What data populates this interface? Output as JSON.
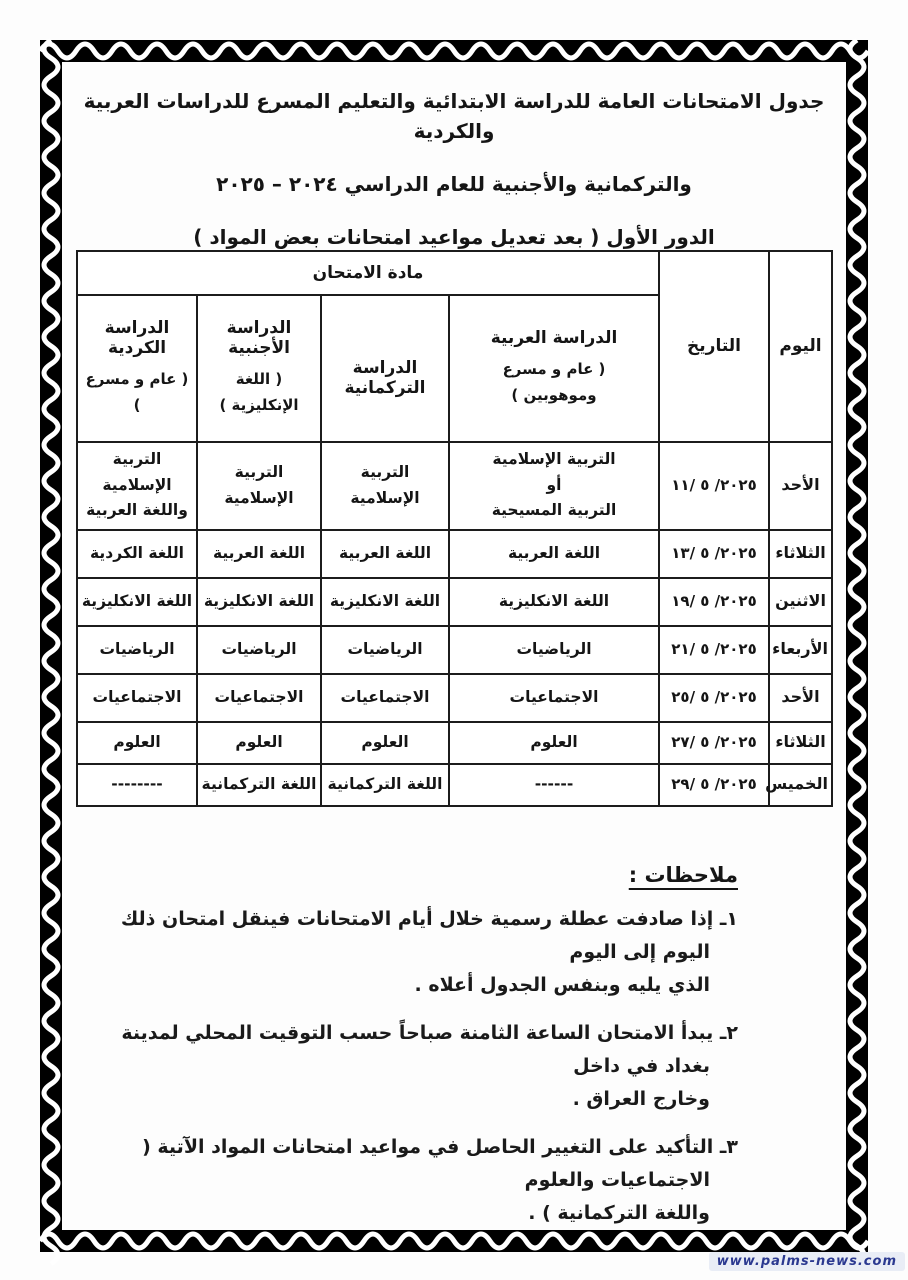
{
  "document": {
    "title_lines": [
      "جدول الامتحانات العامة للدراسة الابتدائية والتعليم المسرع للدراسات العربية والكردية",
      "والتركمانية والأجنبية للعام الدراسي ٢٠٢٤ – ٢٠٢٥",
      "الدور الأول ( بعد تعديل مواعيد امتحانات بعض المواد )"
    ],
    "notes_header": "ملاحظات :",
    "notes": [
      "١ـ إذا صادفت عطلة رسمية خلال أيام الامتحانات فينقل امتحان ذلك اليوم إلى اليوم\nالذي يليه وبنفس الجدول أعلاه .",
      "٢ـ يبدأ الامتحان الساعة الثامنة صباحاً حسب التوقيت المحلي لمدينة بغداد في داخل\nوخارج العراق .",
      "٣ـ التأكيد على التغيير الحاصل في مواعيد امتحانات المواد الآتية ( الاجتماعيات والعلوم\nواللغة التركمانية ) ."
    ],
    "watermark": "www.palms-news.com",
    "accent_colors": {
      "frame": "#000000",
      "watermark_text": "#2b3990",
      "watermark_bg": "#e9edf6"
    }
  },
  "table": {
    "header": {
      "subject": "مادة الامتحان",
      "date": "التاريخ",
      "day": "اليوم",
      "studies": [
        {
          "title": "الدراسة العربية",
          "subtitle": "( عام و مسرع\nوموهوبين )"
        },
        {
          "title": "الدراسة التركمانية",
          "subtitle": ""
        },
        {
          "title": "الدراسة الأجنبية",
          "subtitle": "( اللغة الإنكليزية )"
        },
        {
          "title": "الدراسة الكردية",
          "subtitle": "( عام و مسرع )"
        }
      ]
    },
    "rows": [
      {
        "day": "الأحد",
        "date": "٢٠٢٥/ ٥ /١١",
        "subjects": [
          "التربية الإسلامية\nأو\nالتربية المسيحية",
          "التربية الإسلامية",
          "التربية الإسلامية",
          "التربية الإسلامية\nواللغة العربية"
        ]
      },
      {
        "day": "الثلاثاء",
        "date": "٢٠٢٥/ ٥ /١٣",
        "subjects": [
          "اللغة العربية",
          "اللغة العربية",
          "اللغة العربية",
          "اللغة الكردية"
        ]
      },
      {
        "day": "الاثنين",
        "date": "٢٠٢٥/ ٥ /١٩",
        "subjects": [
          "اللغة الانكليزية",
          "اللغة الانكليزية",
          "اللغة الانكليزية",
          "اللغة الانكليزية"
        ]
      },
      {
        "day": "الأربعاء",
        "date": "٢٠٢٥/ ٥ /٢١",
        "subjects": [
          "الرياضيات",
          "الرياضيات",
          "الرياضيات",
          "الرياضيات"
        ]
      },
      {
        "day": "الأحد",
        "date": "٢٠٢٥/ ٥ /٢٥",
        "subjects": [
          "الاجتماعيات",
          "الاجتماعيات",
          "الاجتماعيات",
          "الاجتماعيات"
        ]
      },
      {
        "day": "الثلاثاء",
        "date": "٢٠٢٥/ ٥ /٢٧",
        "subjects": [
          "العلوم",
          "العلوم",
          "العلوم",
          "العلوم"
        ]
      },
      {
        "day": "الخميس",
        "date": "٢٠٢٥/ ٥ /٢٩",
        "subjects": [
          "------",
          "اللغة التركمانية",
          "اللغة التركمانية",
          "--------"
        ]
      }
    ]
  }
}
